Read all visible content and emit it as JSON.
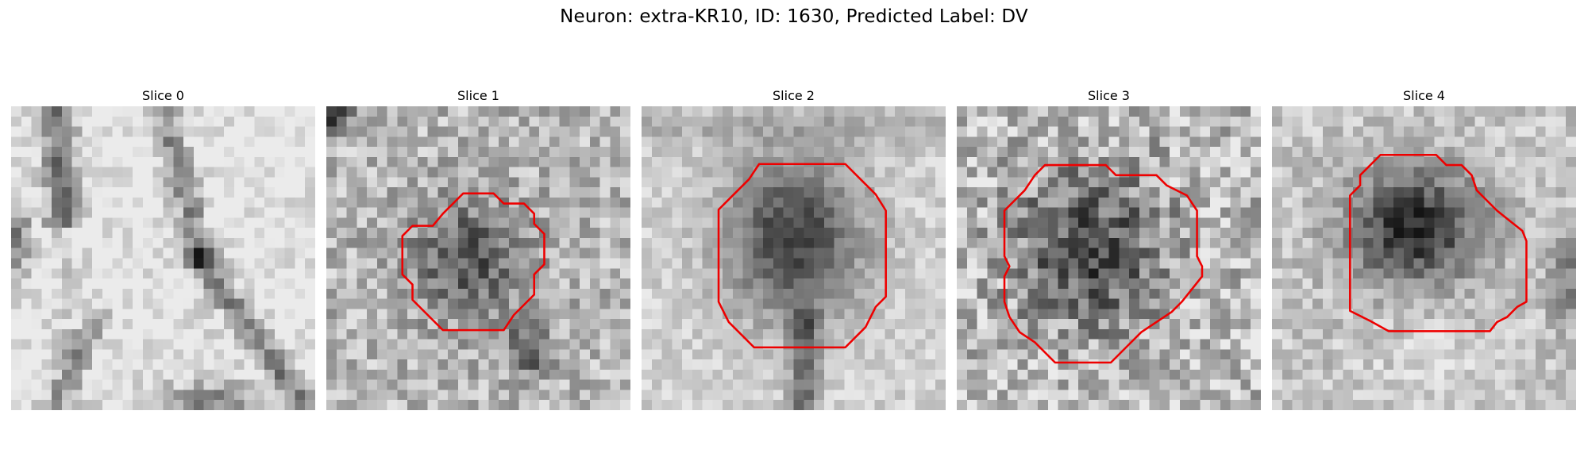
{
  "figure": {
    "title": "Neuron: extra-KR10, ID: 1630, Predicted Label: DV"
  },
  "slices": [
    {
      "title": "Slice 0",
      "has_contour": false
    },
    {
      "title": "Slice 1",
      "has_contour": true
    },
    {
      "title": "Slice 2",
      "has_contour": true
    },
    {
      "title": "Slice 3",
      "has_contour": true
    },
    {
      "title": "Slice 4",
      "has_contour": true
    }
  ],
  "colors": {
    "contour": "#ee0000",
    "colormap": "gray"
  }
}
